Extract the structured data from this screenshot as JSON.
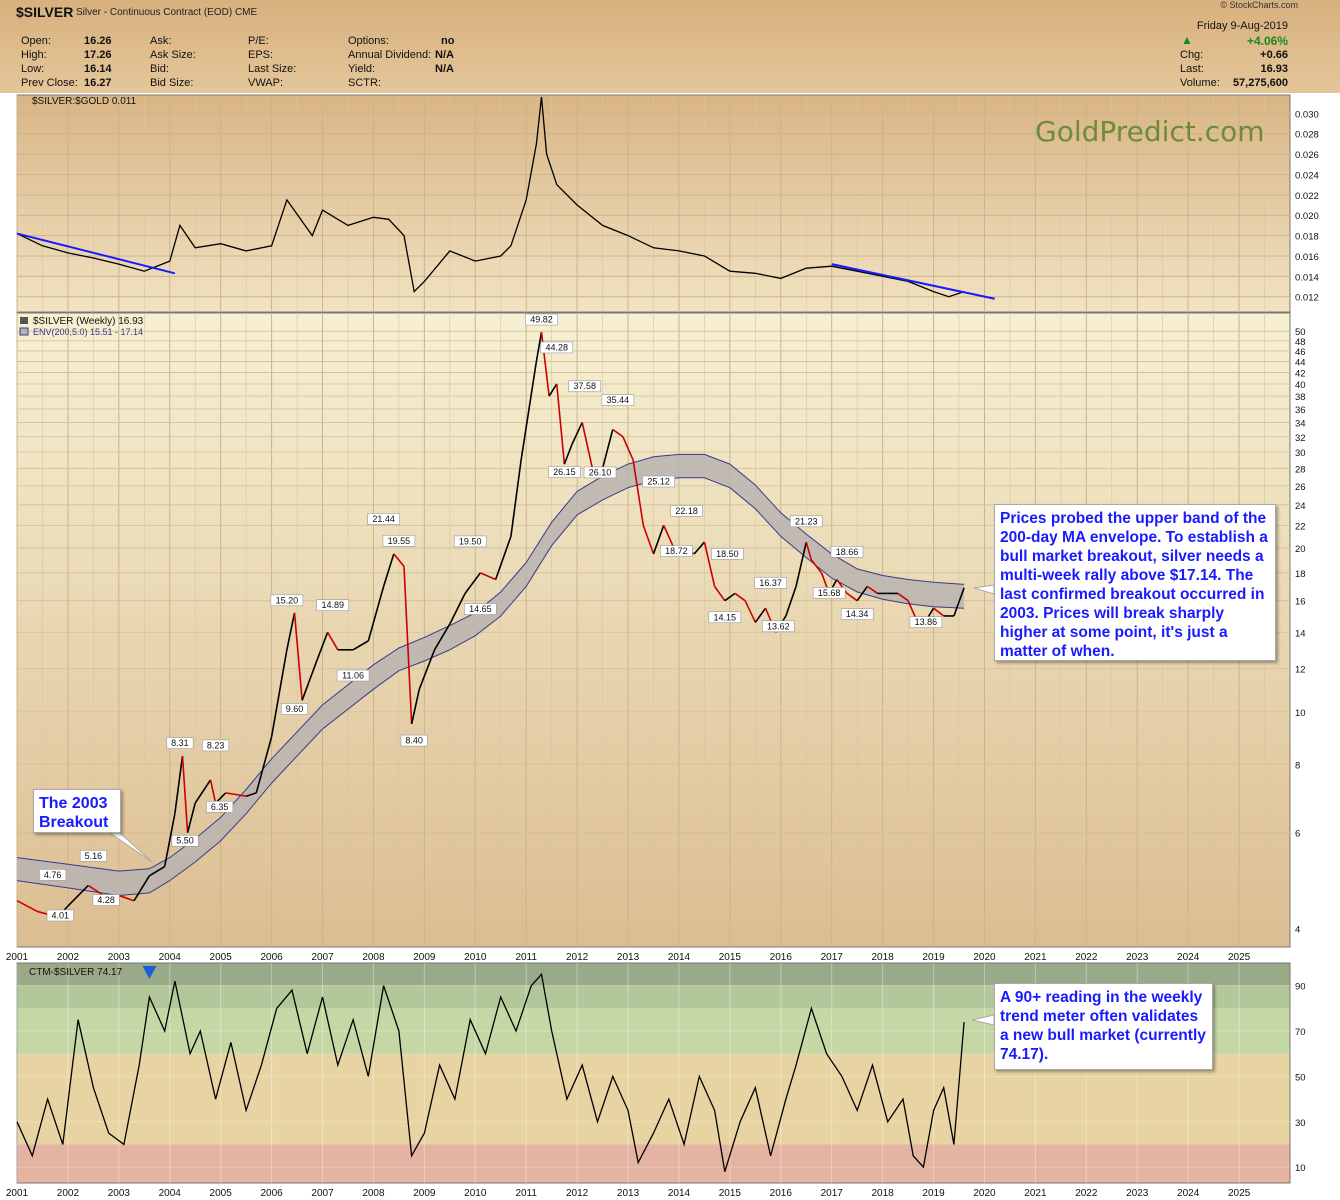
{
  "header": {
    "symbol": "$SILVER",
    "description": "Silver - Continuous Contract (EOD)",
    "exchange": "CME",
    "watermark_site": "© StockCharts.com",
    "date": "Friday  9-Aug-2019",
    "change_pct": "+4.06%",
    "stats_col1": [
      {
        "label": "Open:",
        "value": "16.26"
      },
      {
        "label": "High:",
        "value": "17.26"
      },
      {
        "label": "Low:",
        "value": "16.14"
      },
      {
        "label": "Prev Close:",
        "value": "16.27"
      }
    ],
    "stats_col2": [
      "Ask:",
      "Ask Size:",
      "Bid:",
      "Bid Size:"
    ],
    "stats_col3": [
      "P/E:",
      "EPS:",
      "Last Size:",
      "VWAP:"
    ],
    "stats_col4": [
      {
        "label": "Options:",
        "value": "no"
      },
      {
        "label": "Annual Dividend:",
        "value": "N/A"
      },
      {
        "label": "Yield:",
        "value": "N/A"
      },
      {
        "label": "SCTR:",
        "value": ""
      }
    ],
    "stats_right": [
      {
        "label": "Chg:",
        "value": "+0.66"
      },
      {
        "label": "Last:",
        "value": "16.93"
      },
      {
        "label": "Volume:",
        "value": "57,275,600"
      }
    ],
    "colors": {
      "header_bg": "#ddb988",
      "up": "#1a8a1a"
    }
  },
  "chart_data": [
    {
      "type": "line",
      "panel": "ratio",
      "title": "$SILVER:$GOLD 0.011",
      "watermark": "GoldPredict.com",
      "y_ticks": [
        "0.030",
        "0.028",
        "0.026",
        "0.024",
        "0.022",
        "0.020",
        "0.018",
        "0.016",
        "0.014",
        "0.012"
      ],
      "ylim": [
        0.0105,
        0.0318
      ],
      "x_start": 2001.0,
      "x_end": 2026.0,
      "series": [
        {
          "x": [
            2001.0,
            2001.5,
            2002.0,
            2002.5,
            2003.0,
            2003.5,
            2004.0,
            2004.2,
            2004.5,
            2005.0,
            2005.5,
            2006.0,
            2006.3,
            2006.8,
            2007.0,
            2007.5,
            2008.0,
            2008.3,
            2008.6,
            2008.8,
            2009.0,
            2009.5,
            2010.0,
            2010.5,
            2010.7,
            2011.0,
            2011.2,
            2011.3,
            2011.4,
            2011.6,
            2012.0,
            2012.5,
            2013.0,
            2013.5,
            2014.0,
            2014.5,
            2015.0,
            2015.5,
            2016.0,
            2016.5,
            2017.0,
            2017.5,
            2018.0,
            2018.5,
            2019.0,
            2019.3,
            2019.6
          ],
          "y": [
            0.0182,
            0.017,
            0.0163,
            0.0158,
            0.0152,
            0.0145,
            0.0155,
            0.019,
            0.0168,
            0.0172,
            0.0165,
            0.017,
            0.0215,
            0.018,
            0.0205,
            0.019,
            0.0198,
            0.0196,
            0.018,
            0.0125,
            0.0135,
            0.0165,
            0.0155,
            0.016,
            0.017,
            0.0215,
            0.027,
            0.0316,
            0.026,
            0.023,
            0.021,
            0.019,
            0.018,
            0.0168,
            0.0165,
            0.016,
            0.0145,
            0.0143,
            0.0138,
            0.0148,
            0.015,
            0.0145,
            0.014,
            0.0135,
            0.0125,
            0.012,
            0.0125
          ]
        }
      ],
      "trendlines": [
        {
          "x": [
            2001.0,
            2004.1
          ],
          "y": [
            0.0182,
            0.0143
          ]
        },
        {
          "x": [
            2017.0,
            2020.2
          ],
          "y": [
            0.0152,
            0.0118
          ]
        }
      ],
      "colors": {
        "line": "#000000",
        "trendline": "#1a1aff"
      }
    },
    {
      "type": "line",
      "panel": "price",
      "title": "$SILVER (Weekly) 16.93",
      "subtitle": "ENV(200,5.0) 15.51 - 17.14",
      "y_scale": "log",
      "y_ticks": [
        4,
        6,
        8,
        10,
        12,
        14,
        16,
        18,
        20,
        22,
        24,
        26,
        28,
        30,
        32,
        34,
        36,
        38,
        40,
        42,
        44,
        46,
        48,
        50
      ],
      "ylim": [
        3.7,
        54
      ],
      "x_ticks": [
        "2001",
        "2002",
        "2003",
        "2004",
        "2005",
        "2006",
        "2007",
        "2008",
        "2009",
        "2010",
        "2011",
        "2012",
        "2013",
        "2014",
        "2015",
        "2016",
        "2017",
        "2018",
        "2019",
        "2020",
        "2021",
        "2022",
        "2023",
        "2024",
        "2025"
      ],
      "x_start": 2001.0,
      "x_end": 2026.0,
      "series": [
        {
          "name": "$SILVER",
          "x": [
            2001.0,
            2001.4,
            2001.8,
            2002.0,
            2002.4,
            2002.7,
            2003.0,
            2003.3,
            2003.6,
            2003.9,
            2004.1,
            2004.25,
            2004.35,
            2004.5,
            2004.8,
            2004.9,
            2005.1,
            2005.5,
            2005.7,
            2006.0,
            2006.3,
            2006.45,
            2006.6,
            2006.9,
            2007.1,
            2007.3,
            2007.6,
            2007.9,
            2008.2,
            2008.4,
            2008.6,
            2008.75,
            2008.9,
            2009.2,
            2009.5,
            2009.8,
            2010.1,
            2010.4,
            2010.7,
            2010.9,
            2011.2,
            2011.3,
            2011.45,
            2011.6,
            2011.75,
            2011.9,
            2012.1,
            2012.3,
            2012.5,
            2012.7,
            2012.9,
            2013.1,
            2013.3,
            2013.5,
            2013.7,
            2013.9,
            2014.1,
            2014.3,
            2014.5,
            2014.7,
            2014.9,
            2015.1,
            2015.3,
            2015.5,
            2015.7,
            2015.9,
            2016.1,
            2016.3,
            2016.5,
            2016.6,
            2016.8,
            2016.95,
            2017.1,
            2017.3,
            2017.5,
            2017.7,
            2017.9,
            2018.1,
            2018.3,
            2018.5,
            2018.7,
            2018.85,
            2019.0,
            2019.2,
            2019.4,
            2019.6
          ],
          "y": [
            4.5,
            4.3,
            4.2,
            4.4,
            4.8,
            4.6,
            4.6,
            4.5,
            5.0,
            5.2,
            6.5,
            8.3,
            6.0,
            6.8,
            7.5,
            6.8,
            7.1,
            7.0,
            7.1,
            9.0,
            13.0,
            15.2,
            10.5,
            12.5,
            14.0,
            13.0,
            13.0,
            13.5,
            17.0,
            19.5,
            18.5,
            9.5,
            11.0,
            13.0,
            14.5,
            16.5,
            18.0,
            17.5,
            21.0,
            29.0,
            44.0,
            49.8,
            38.0,
            40.0,
            28.5,
            31.0,
            34.0,
            28.0,
            28.0,
            33.0,
            32.0,
            29.0,
            22.0,
            19.5,
            22.0,
            20.0,
            20.0,
            19.5,
            20.5,
            17.0,
            16.0,
            16.5,
            16.0,
            14.6,
            15.5,
            14.0,
            15.0,
            17.0,
            20.5,
            19.0,
            18.0,
            16.5,
            17.5,
            16.5,
            16.0,
            17.0,
            16.5,
            16.5,
            16.5,
            16.0,
            14.5,
            14.7,
            15.5,
            15.0,
            15.0,
            16.9
          ]
        }
      ],
      "envelope": {
        "name": "ENV(200,5.0)",
        "x": [
          2001.0,
          2002.0,
          2003.0,
          2003.6,
          2004.0,
          2004.5,
          2005.0,
          2005.5,
          2006.0,
          2007.0,
          2008.0,
          2008.5,
          2009.0,
          2009.5,
          2010.0,
          2010.5,
          2011.0,
          2011.5,
          2012.0,
          2012.5,
          2013.0,
          2013.5,
          2014.0,
          2014.5,
          2015.0,
          2015.5,
          2016.0,
          2016.5,
          2017.0,
          2017.5,
          2018.0,
          2018.5,
          2019.0,
          2019.6
        ],
        "lower": [
          4.9,
          4.75,
          4.6,
          4.65,
          4.9,
          5.3,
          5.8,
          6.5,
          7.4,
          9.3,
          11.0,
          11.9,
          12.4,
          13.0,
          13.8,
          15.0,
          17.0,
          20.2,
          23.0,
          24.5,
          25.8,
          26.6,
          26.9,
          26.9,
          25.8,
          23.6,
          21.0,
          19.2,
          17.6,
          16.6,
          16.1,
          15.8,
          15.6,
          15.5
        ],
        "upper": [
          5.4,
          5.25,
          5.1,
          5.15,
          5.4,
          5.85,
          6.4,
          7.2,
          8.2,
          10.3,
          12.2,
          13.1,
          13.7,
          14.4,
          15.2,
          16.6,
          18.8,
          22.3,
          25.4,
          27.1,
          28.5,
          29.4,
          29.7,
          29.7,
          28.5,
          26.1,
          23.2,
          21.2,
          19.5,
          18.3,
          17.8,
          17.5,
          17.3,
          17.14
        ]
      },
      "annotations": [
        {
          "label": "4.76",
          "x": 2001.7,
          "y": 4.76
        },
        {
          "label": "4.01",
          "x": 2001.85,
          "y": 4.01
        },
        {
          "label": "5.16",
          "x": 2002.5,
          "y": 5.16
        },
        {
          "label": "4.28",
          "x": 2002.75,
          "y": 4.28
        },
        {
          "label": "5.50",
          "x": 2004.3,
          "y": 5.5
        },
        {
          "label": "8.31",
          "x": 2004.2,
          "y": 8.31
        },
        {
          "label": "8.23",
          "x": 2004.9,
          "y": 8.23
        },
        {
          "label": "6.35",
          "x": 2004.98,
          "y": 6.35
        },
        {
          "label": "15.20",
          "x": 2006.3,
          "y": 15.2
        },
        {
          "label": "9.60",
          "x": 2006.45,
          "y": 9.6
        },
        {
          "label": "14.89",
          "x": 2007.2,
          "y": 14.89
        },
        {
          "label": "11.06",
          "x": 2007.6,
          "y": 11.06
        },
        {
          "label": "21.44",
          "x": 2008.2,
          "y": 21.44
        },
        {
          "label": "19.55",
          "x": 2008.5,
          "y": 19.55
        },
        {
          "label": "8.40",
          "x": 2008.8,
          "y": 8.4
        },
        {
          "label": "19.50",
          "x": 2009.9,
          "y": 19.5
        },
        {
          "label": "14.65",
          "x": 2010.1,
          "y": 14.65
        },
        {
          "label": "49.82",
          "x": 2011.3,
          "y": 49.82
        },
        {
          "label": "44.28",
          "x": 2011.6,
          "y": 44.28
        },
        {
          "label": "26.15",
          "x": 2011.75,
          "y": 26.15
        },
        {
          "label": "37.58",
          "x": 2012.15,
          "y": 37.58
        },
        {
          "label": "26.10",
          "x": 2012.45,
          "y": 26.1
        },
        {
          "label": "35.44",
          "x": 2012.8,
          "y": 35.44
        },
        {
          "label": "25.12",
          "x": 2013.6,
          "y": 25.12
        },
        {
          "label": "22.18",
          "x": 2014.15,
          "y": 22.18
        },
        {
          "label": "18.72",
          "x": 2013.95,
          "y": 18.72
        },
        {
          "label": "18.50",
          "x": 2014.95,
          "y": 18.5
        },
        {
          "label": "14.15",
          "x": 2014.9,
          "y": 14.15
        },
        {
          "label": "16.37",
          "x": 2015.8,
          "y": 16.37
        },
        {
          "label": "13.62",
          "x": 2015.95,
          "y": 13.62
        },
        {
          "label": "21.23",
          "x": 2016.5,
          "y": 21.23
        },
        {
          "label": "15.68",
          "x": 2016.95,
          "y": 15.68
        },
        {
          "label": "18.66",
          "x": 2017.3,
          "y": 18.66
        },
        {
          "label": "14.34",
          "x": 2017.5,
          "y": 14.34
        },
        {
          "label": "13.86",
          "x": 2018.85,
          "y": 13.86
        }
      ],
      "colors": {
        "line": "#000000",
        "down": "#cc0000",
        "envelope_fill": "#b9b4b2",
        "envelope_edge": "#3a3a8a"
      }
    },
    {
      "type": "line",
      "panel": "ctm",
      "title": "CTM-$SILVER 74.17",
      "y_ticks": [
        10,
        30,
        50,
        70,
        90
      ],
      "ylim": [
        3,
        100
      ],
      "bands": [
        {
          "from": 90,
          "to": 100,
          "color": "#9aaa88"
        },
        {
          "from": 80,
          "to": 90,
          "color": "#b2c89a"
        },
        {
          "from": 60,
          "to": 80,
          "color": "#c4d8a6"
        },
        {
          "from": 20,
          "to": 60,
          "color": "#e8d4a3"
        },
        {
          "from": 3,
          "to": 20,
          "color": "#e4b3a1"
        }
      ],
      "x_ticks": [
        "2001",
        "2002",
        "2003",
        "2004",
        "2005",
        "2006",
        "2007",
        "2008",
        "2009",
        "2010",
        "2011",
        "2012",
        "2013",
        "2014",
        "2015",
        "2016",
        "2017",
        "2018",
        "2019",
        "2020",
        "2021",
        "2022",
        "2023",
        "2024",
        "2025"
      ],
      "x_start": 2001.0,
      "x_end": 2026.0,
      "series": [
        {
          "name": "CTM-$SILVER",
          "x": [
            2001.0,
            2001.3,
            2001.6,
            2001.9,
            2002.2,
            2002.5,
            2002.8,
            2003.1,
            2003.4,
            2003.6,
            2003.9,
            2004.1,
            2004.4,
            2004.6,
            2004.9,
            2005.2,
            2005.5,
            2005.8,
            2006.1,
            2006.4,
            2006.7,
            2007.0,
            2007.3,
            2007.6,
            2007.9,
            2008.2,
            2008.5,
            2008.75,
            2009.0,
            2009.3,
            2009.6,
            2009.9,
            2010.2,
            2010.5,
            2010.8,
            2011.1,
            2011.3,
            2011.5,
            2011.8,
            2012.1,
            2012.4,
            2012.7,
            2013.0,
            2013.2,
            2013.5,
            2013.8,
            2014.1,
            2014.4,
            2014.7,
            2014.9,
            2015.2,
            2015.5,
            2015.8,
            2016.1,
            2016.3,
            2016.6,
            2016.9,
            2017.2,
            2017.5,
            2017.8,
            2018.1,
            2018.4,
            2018.6,
            2018.8,
            2019.0,
            2019.2,
            2019.4,
            2019.6
          ],
          "y": [
            30,
            15,
            40,
            20,
            75,
            45,
            25,
            20,
            55,
            85,
            70,
            92,
            60,
            70,
            40,
            65,
            35,
            55,
            80,
            88,
            60,
            85,
            55,
            75,
            50,
            90,
            70,
            15,
            25,
            55,
            40,
            75,
            60,
            85,
            70,
            90,
            95,
            70,
            40,
            55,
            30,
            50,
            35,
            12,
            25,
            40,
            20,
            50,
            35,
            8,
            30,
            45,
            15,
            40,
            55,
            80,
            60,
            50,
            35,
            55,
            30,
            40,
            15,
            10,
            35,
            45,
            20,
            74
          ]
        }
      ],
      "marker": {
        "x": 2003.6,
        "label": "down-arrow"
      },
      "colors": {
        "line": "#000000",
        "marker": "#1a5fd6"
      }
    }
  ],
  "callouts": {
    "envelope_note": "Prices probed the upper band of the 200-day MA envelope. To establish a bull market breakout, silver needs a multi-week rally above $17.14. The last confirmed breakout occurred in 2003. Prices will break sharply higher at some point, it's just a matter of when.",
    "breakout_note": "The 2003 Breakout",
    "ctm_note": "A 90+ reading in the weekly trend meter often validates a new bull market (currently 74.17)."
  }
}
